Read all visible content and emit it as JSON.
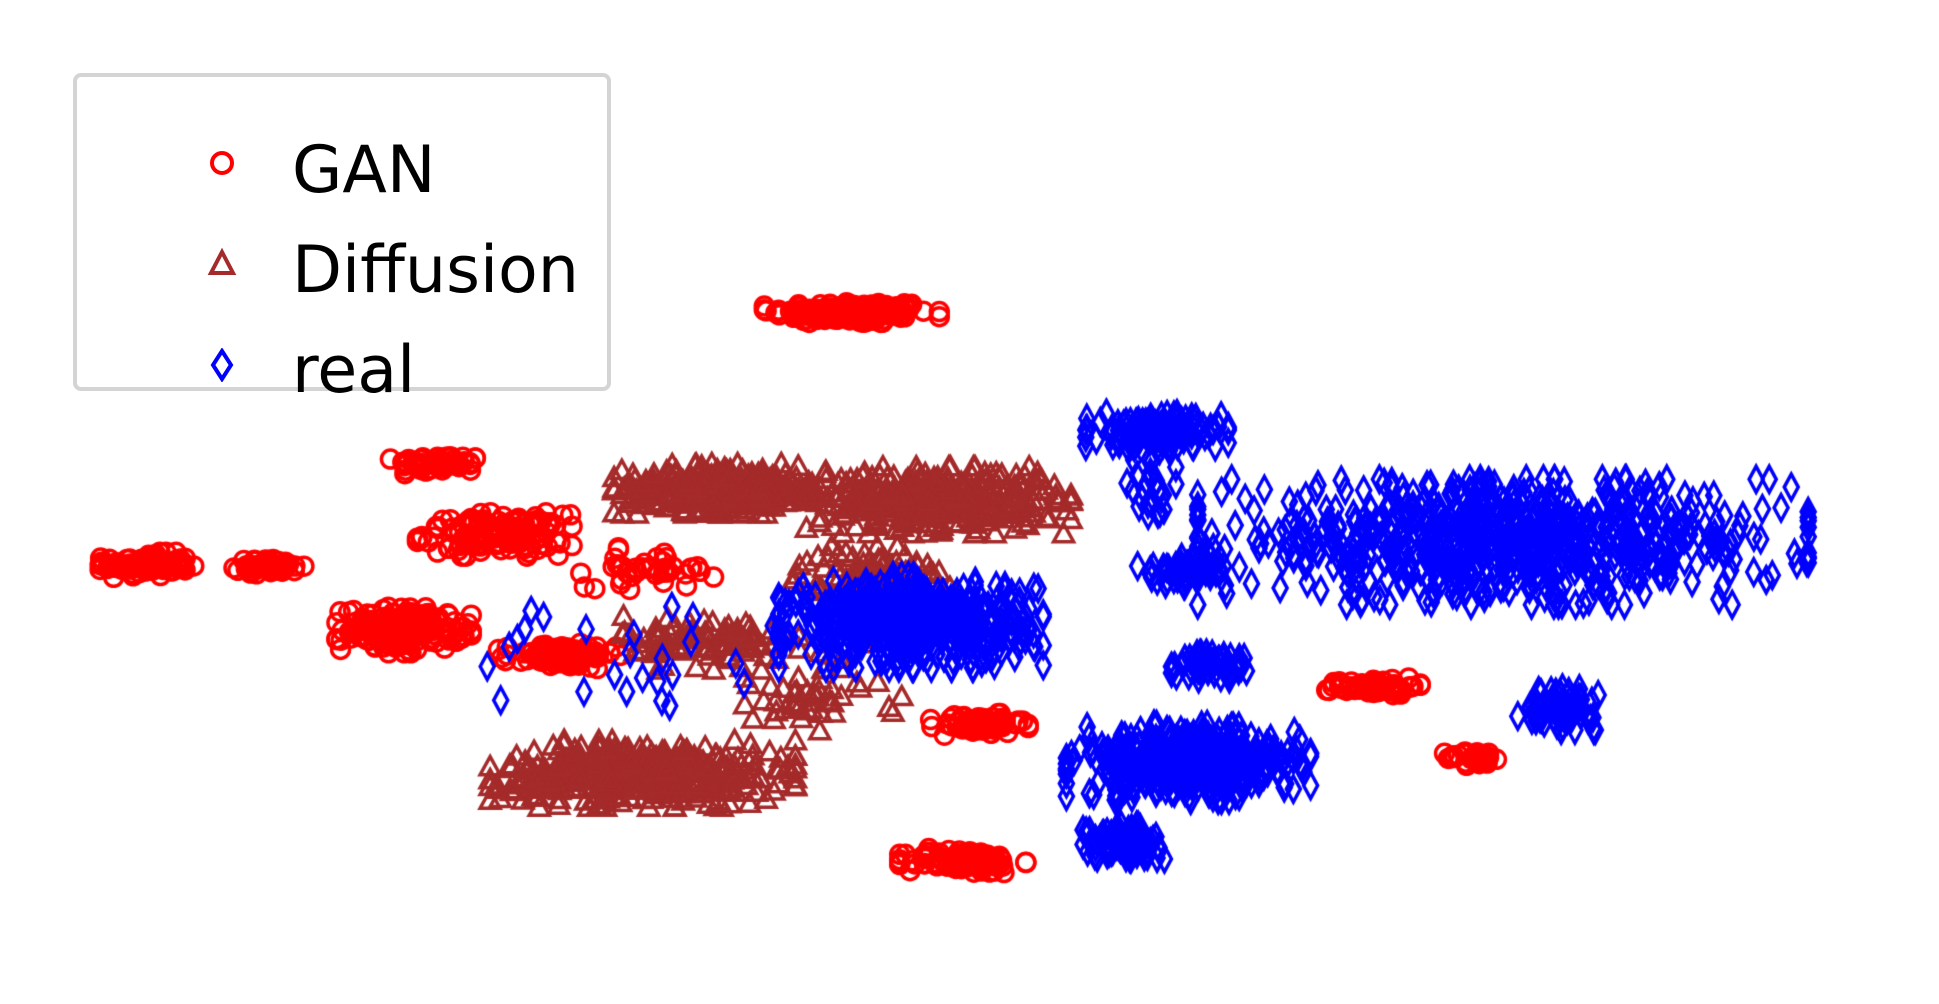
{
  "chart_data": {
    "type": "scatter",
    "title": "",
    "xlabel": "",
    "ylabel": "",
    "axes_visible": false,
    "grid": false,
    "legend": {
      "placement": "top-left"
    },
    "xlim": [
      0,
      100
    ],
    "ylim": [
      0,
      100
    ],
    "series": [
      {
        "name": "GAN",
        "marker": "circle",
        "color": "#ff0000",
        "clusters": [
          {
            "center": [
              42.8,
              85.2
            ],
            "spread": [
              4.3,
              1.5
            ],
            "count": 150
          },
          {
            "center": [
              20.5,
              65.3
            ],
            "spread": [
              2.4,
              1.2
            ],
            "count": 50
          },
          {
            "center": [
              4.7,
              52.0
            ],
            "spread": [
              2.3,
              1.5
            ],
            "count": 90
          },
          {
            "center": [
              11.3,
              51.8
            ],
            "spread": [
              1.8,
              0.9
            ],
            "count": 50
          },
          {
            "center": [
              23.5,
              56.0
            ],
            "spread": [
              3.8,
              2.6
            ],
            "count": 130
          },
          {
            "center": [
              18.6,
              43.5
            ],
            "spread": [
              3.3,
              2.8
            ],
            "count": 180
          },
          {
            "center": [
              27.0,
              40.0
            ],
            "spread": [
              3.0,
              1.5
            ],
            "count": 90
          },
          {
            "center": [
              32.0,
              51.5
            ],
            "spread": [
              3.5,
              2.5
            ],
            "count": 40
          },
          {
            "center": [
              49.7,
              31.0
            ],
            "spread": [
              2.4,
              1.3
            ],
            "count": 60
          },
          {
            "center": [
              71.0,
              36.0
            ],
            "spread": [
              2.3,
              1.0
            ],
            "count": 70
          },
          {
            "center": [
              76.6,
              26.6
            ],
            "spread": [
              1.6,
              0.9
            ],
            "count": 30
          },
          {
            "center": [
              48.8,
              13.0
            ],
            "spread": [
              3.1,
              1.6
            ],
            "count": 100
          }
        ]
      },
      {
        "name": "Diffusion",
        "marker": "triangle",
        "color": "#a52a2a",
        "clusters": [
          {
            "center": [
              36.0,
              62.0
            ],
            "spread": [
              5.5,
              3.0
            ],
            "count": 300
          },
          {
            "center": [
              47.5,
              60.5
            ],
            "spread": [
              6.5,
              4.0
            ],
            "count": 350
          },
          {
            "center": [
              44.0,
              50.0
            ],
            "spread": [
              4.0,
              4.0
            ],
            "count": 120
          },
          {
            "center": [
              35.0,
              42.0
            ],
            "spread": [
              4.5,
              3.5
            ],
            "count": 90
          },
          {
            "center": [
              31.5,
              24.5
            ],
            "spread": [
              7.5,
              4.0
            ],
            "count": 420
          },
          {
            "center": [
              40.0,
              35.0
            ],
            "spread": [
              5.0,
              6.0
            ],
            "count": 50
          }
        ]
      },
      {
        "name": "real",
        "marker": "diamond",
        "color": "#0000ff",
        "clusters": [
          {
            "center": [
              59.3,
              69.5
            ],
            "spread": [
              3.5,
              2.2
            ],
            "count": 160
          },
          {
            "center": [
              78.0,
              55.0
            ],
            "spread": [
              15.0,
              7.5
            ],
            "count": 750
          },
          {
            "center": [
              46.0,
              44.5
            ],
            "spread": [
              6.5,
              5.5
            ],
            "count": 500
          },
          {
            "center": [
              61.0,
              26.0
            ],
            "spread": [
              6.0,
              4.5
            ],
            "count": 420
          },
          {
            "center": [
              57.5,
              15.5
            ],
            "spread": [
              2.0,
              2.0
            ],
            "count": 100
          },
          {
            "center": [
              61.0,
              51.5
            ],
            "spread": [
              2.5,
              2.0
            ],
            "count": 60
          },
          {
            "center": [
              62.5,
              39.0
            ],
            "spread": [
              2.2,
              1.8
            ],
            "count": 60
          },
          {
            "center": [
              81.0,
              33.0
            ],
            "spread": [
              2.0,
              2.5
            ],
            "count": 70
          },
          {
            "center": [
              59.0,
              62.0
            ],
            "spread": [
              1.2,
              5.0
            ],
            "count": 25
          },
          {
            "center": [
              30.0,
              40.0
            ],
            "spread": [
              8.0,
              8.0
            ],
            "count": 25
          }
        ]
      }
    ]
  }
}
